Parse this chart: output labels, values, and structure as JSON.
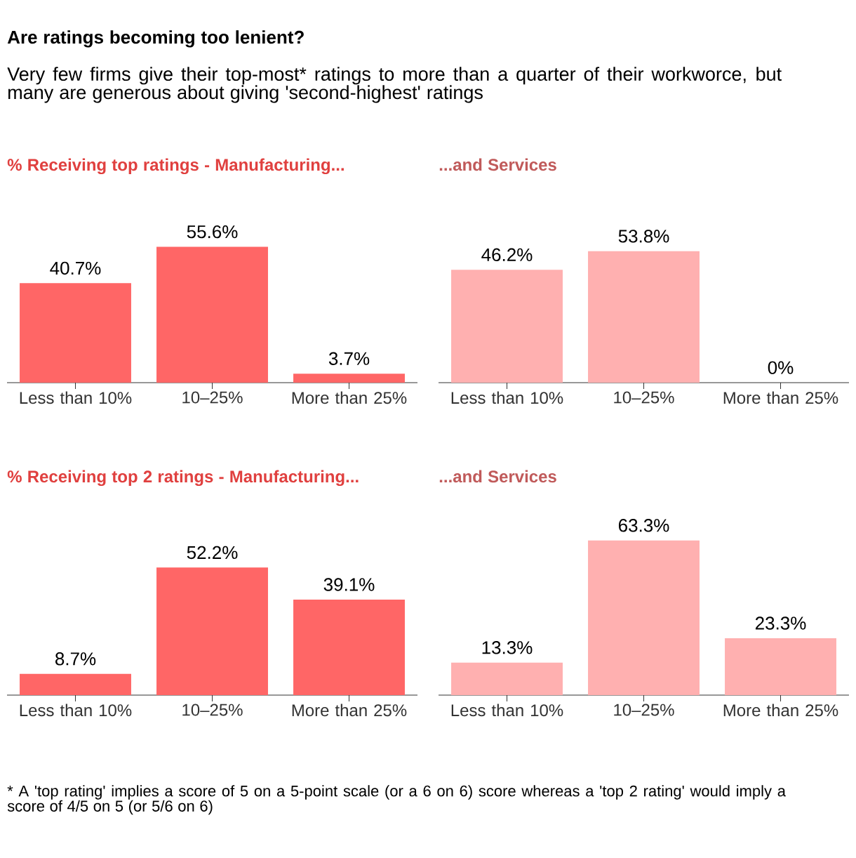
{
  "chart_data": [
    {
      "type": "other",
      "title": "Are ratings becoming too lenient?",
      "subtitle": "Very few firms give their top-most* ratings to more than a quarter of their workworce, but many are generous about giving 'second-highest' ratings",
      "annotations": [
        "* A 'top rating' implies a score of 5 on a 5-point scale (or a 6 on 6) score whereas a 'top 2 rating' would imply a score of 4/5 on 5 (or 5/6 on 6)"
      ]
    },
    {
      "type": "bar",
      "title": "% Receiving top ratings - Manufacturing...",
      "categories": [
        "Less than 10%",
        "10–25%",
        "More than 25%"
      ],
      "values": [
        40.7,
        55.6,
        3.7
      ],
      "value_labels": [
        "40.7%",
        "55.6%",
        "3.7%"
      ],
      "color": "#ff6666"
    },
    {
      "type": "bar",
      "title": "...and Services",
      "categories": [
        "Less than 10%",
        "10–25%",
        "More than 25%"
      ],
      "values": [
        46.2,
        53.8,
        0
      ],
      "value_labels": [
        "46.2%",
        "53.8%",
        "0%"
      ],
      "color": "#ffb0b0"
    },
    {
      "type": "bar",
      "title": "% Receiving top 2 ratings - Manufacturing...",
      "categories": [
        "Less than 10%",
        "10–25%",
        "More than 25%"
      ],
      "values": [
        8.7,
        52.2,
        39.1
      ],
      "value_labels": [
        "8.7%",
        "52.2%",
        "39.1%"
      ],
      "color": "#ff6666"
    },
    {
      "type": "bar",
      "title": "...and Services",
      "categories": [
        "Less than 10%",
        "10–25%",
        "More than 25%"
      ],
      "values": [
        13.3,
        63.3,
        23.3
      ],
      "value_labels": [
        "13.3%",
        "63.3%",
        "23.3%"
      ],
      "color": "#ffb0b0"
    }
  ]
}
